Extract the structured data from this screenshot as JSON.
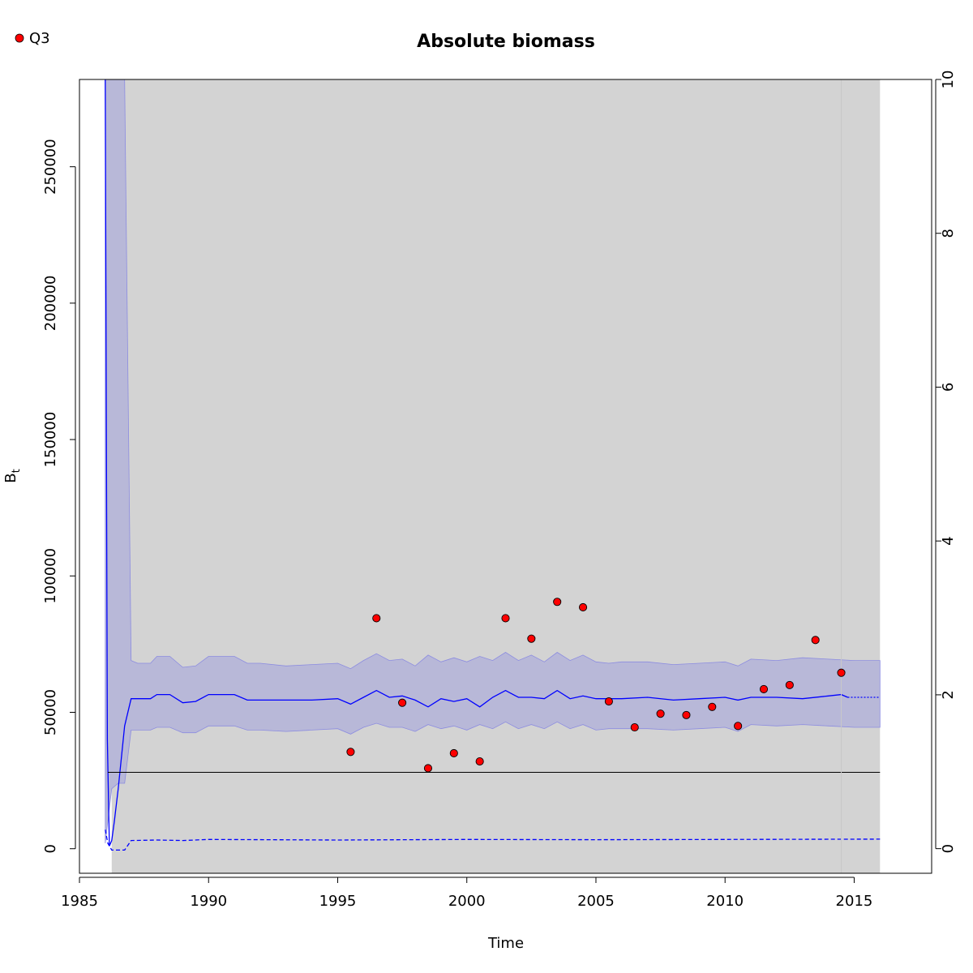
{
  "chart_data": {
    "type": "line",
    "title": "Absolute biomass",
    "xlabel": "Time",
    "ylabel": "B",
    "ylabel_subscript": "t",
    "xlim": [
      1985,
      2018
    ],
    "ylim": [
      -9000,
      282000
    ],
    "y2lim": [
      -0.32,
      10
    ],
    "x_ticks": [
      1985,
      1990,
      1995,
      2000,
      2005,
      2010,
      2015
    ],
    "y_ticks": [
      0,
      50000,
      100000,
      150000,
      200000,
      250000
    ],
    "y2_ticks": [
      0,
      2,
      4,
      6,
      8,
      10
    ],
    "shade_region": {
      "x": [
        1986.25,
        2016
      ],
      "color": "#d3d3d3"
    },
    "reference_line": {
      "y": 28000,
      "color": "#000000"
    },
    "vertical_line": {
      "x": 2014.5,
      "color": "#c8c8c8"
    },
    "series": [
      {
        "kind": "band",
        "color": "#b8b8d8",
        "x": [
          1986.0,
          1986.25,
          1986.5,
          1986.75,
          1987.0,
          1987.25,
          1987.5,
          1987.75,
          1988.0,
          1988.5,
          1989.0,
          1989.5,
          1990.0,
          1990.5,
          1991.0,
          1991.5,
          1992.0,
          1993.0,
          1994.0,
          1995.0,
          1995.5,
          1996.0,
          1996.5,
          1997.0,
          1997.5,
          1998.0,
          1998.5,
          1999.0,
          1999.5,
          2000.0,
          2000.5,
          2001.0,
          2001.5,
          2002.0,
          2002.5,
          2003.0,
          2003.5,
          2004.0,
          2004.5,
          2005.0,
          2005.5,
          2006.0,
          2007.0,
          2008.0,
          2009.0,
          2010.0,
          2010.5,
          2011.0,
          2012.0,
          2013.0,
          2014.0,
          2015.0,
          2016.0
        ],
        "upper": [
          282000,
          282000,
          282000,
          282000,
          69000,
          68000,
          68000,
          68000,
          70500,
          70500,
          66500,
          67000,
          70500,
          70500,
          70500,
          68000,
          68000,
          67000,
          67500,
          68000,
          66000,
          69000,
          71500,
          69000,
          69500,
          67000,
          71000,
          68500,
          70000,
          68500,
          70500,
          69000,
          72000,
          69000,
          71000,
          68500,
          72000,
          69000,
          71000,
          68500,
          68000,
          68500,
          68500,
          67500,
          68000,
          68500,
          67000,
          69500,
          69000,
          70000,
          69500,
          69000,
          69000
        ],
        "lower": [
          2000,
          22000,
          24000,
          24000,
          43500,
          43500,
          43500,
          43500,
          44500,
          44500,
          42500,
          42500,
          45000,
          45000,
          45000,
          43500,
          43500,
          43000,
          43500,
          44000,
          42000,
          44500,
          46000,
          44500,
          44500,
          43000,
          45500,
          44000,
          45000,
          43500,
          45500,
          44000,
          46500,
          44000,
          45500,
          44000,
          46500,
          44000,
          45500,
          43500,
          44000,
          44000,
          44000,
          43500,
          44000,
          44500,
          43000,
          45500,
          45000,
          45500,
          45000,
          44500,
          44500
        ]
      },
      {
        "kind": "line",
        "color": "#0000ff",
        "x": [
          1986.0,
          1986.08,
          1986.16,
          1986.25,
          1986.35,
          1986.5,
          1986.75,
          1987.0,
          1987.25,
          1987.75,
          1988.0,
          1988.5,
          1989.0,
          1989.5,
          1990.0,
          1990.5,
          1991.0,
          1991.5,
          1992.0,
          1993.0,
          1994.0,
          1995.0,
          1995.5,
          1996.0,
          1996.5,
          1997.0,
          1997.5,
          1998.0,
          1998.5,
          1999.0,
          1999.5,
          2000.0,
          2000.5,
          2001.0,
          2001.5,
          2002.0,
          2002.5,
          2003.0,
          2003.5,
          2004.0,
          2004.5,
          2005.0,
          2005.5,
          2006.0,
          2007.0,
          2008.0,
          2009.0,
          2010.0,
          2010.5,
          2011.0,
          2012.0,
          2013.0,
          2014.0,
          2014.5,
          2014.75
        ],
        "y": [
          282000,
          40000,
          1000,
          3000,
          10000,
          22000,
          45000,
          55000,
          55000,
          55000,
          56500,
          56500,
          53500,
          54000,
          56500,
          56500,
          56500,
          54500,
          54500,
          54500,
          54500,
          55000,
          53000,
          55500,
          58000,
          55500,
          56000,
          54500,
          52000,
          55000,
          54000,
          55000,
          52000,
          55500,
          58000,
          55500,
          55500,
          55000,
          58000,
          55000,
          56000,
          55000,
          55000,
          55000,
          55500,
          54500,
          55000,
          55500,
          54500,
          55500,
          55500,
          55000,
          56000,
          56500,
          55500
        ]
      },
      {
        "kind": "line",
        "color": "#0000ff",
        "style": "dotted",
        "x": [
          2014.75,
          2016.0
        ],
        "y": [
          55500,
          55500
        ]
      },
      {
        "kind": "line",
        "color": "#0000ff",
        "style": "dashed",
        "x": [
          1986.0,
          1986.1,
          1986.25,
          1986.5,
          1986.75,
          1987.0,
          1988.0,
          1989.0,
          1990.0,
          1995.0,
          2000.0,
          2005.0,
          2010.0,
          2016.0
        ],
        "y": [
          7000,
          2000,
          -500,
          -500,
          -500,
          3000,
          3200,
          3000,
          3400,
          3200,
          3400,
          3300,
          3400,
          3500
        ]
      },
      {
        "name": "Q3",
        "kind": "points",
        "color": "#ff0000",
        "x": [
          1995.5,
          1996.5,
          1997.5,
          1998.5,
          1999.5,
          2000.5,
          2001.5,
          2002.5,
          2003.5,
          2004.5,
          2005.5,
          2006.5,
          2007.5,
          2008.5,
          2009.5,
          2010.5,
          2011.5,
          2012.5,
          2013.5,
          2014.5
        ],
        "y": [
          35500,
          84500,
          53500,
          29500,
          35000,
          32000,
          84500,
          77000,
          90500,
          88500,
          54000,
          44500,
          49500,
          49000,
          52000,
          45000,
          58500,
          60000,
          76500,
          64500
        ]
      }
    ]
  }
}
